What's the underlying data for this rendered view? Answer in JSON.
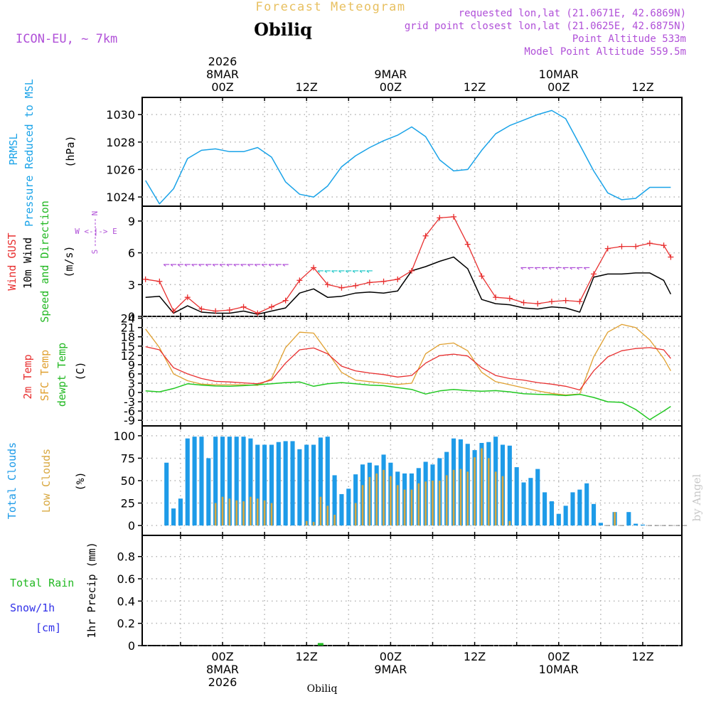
{
  "header": {
    "title": "Forecast Meteogram",
    "location": "Obiliq",
    "model": "ICON-EU, ~ 7km",
    "requested": "requested lon,lat (21.0671E, 42.6869N)",
    "gridpoint": "grid point closest lon,lat (21.0625E, 42.6875N)",
    "point_alt": "Point Altitude 533m",
    "model_alt": "Model Point Altitude 559.5m",
    "footer_location": "Obiliq",
    "watermark": "by Angel"
  },
  "time_axis": {
    "top": [
      {
        "t": 0,
        "lines": [
          "2026",
          "8MAR",
          "00Z"
        ]
      },
      {
        "t": 12,
        "lines": [
          "12Z"
        ]
      },
      {
        "t": 24,
        "lines": [
          "9MAR",
          "00Z"
        ]
      },
      {
        "t": 36,
        "lines": [
          "12Z"
        ]
      },
      {
        "t": 48,
        "lines": [
          "10MAR",
          "00Z"
        ]
      },
      {
        "t": 60,
        "lines": [
          "12Z"
        ]
      }
    ],
    "bottom": [
      {
        "t": 0,
        "lines": [
          "00Z",
          "8MAR",
          "2026"
        ]
      },
      {
        "t": 12,
        "lines": [
          "12Z"
        ]
      },
      {
        "t": 24,
        "lines": [
          "00Z",
          "9MAR"
        ]
      },
      {
        "t": 36,
        "lines": [
          "12Z"
        ]
      },
      {
        "t": 48,
        "lines": [
          "00Z",
          "10MAR"
        ]
      },
      {
        "t": 60,
        "lines": [
          "12Z"
        ]
      }
    ]
  },
  "labels": {
    "pressure": [
      "PRMSL",
      "Pressure Reduced to MSL",
      "(hPa)"
    ],
    "wind": [
      "Wind GUST",
      "10m Wind",
      "Speed and Direction",
      "(m/s)"
    ],
    "compass": [
      "N",
      "W <-|-> E",
      "S"
    ],
    "temp": [
      "2m Temp",
      "SFC Temp",
      "dewpt Temp",
      "(C)"
    ],
    "clouds": [
      "Total Clouds",
      "Low Clouds",
      "(%)"
    ],
    "precip": [
      "Total  Rain",
      "Snow/1h",
      "[cm]",
      "1hr Precip (mm)"
    ]
  },
  "colors": {
    "pressure": "#1aa3e8",
    "gust": "#e83030",
    "wind": "#000000",
    "temp2m": "#e83030",
    "sfc": "#e0a030",
    "dewpt": "#22c822",
    "total_clouds": "#1e9be8",
    "low_clouds": "#d8a840",
    "rain": "#22b822",
    "snow": "#3030e8",
    "purple": "#b050d8",
    "title": "#e8c060"
  },
  "chart_data": [
    {
      "type": "line",
      "title": "PRMSL Pressure Reduced to MSL",
      "ylabel": "(hPa)",
      "ylim": [
        1023,
        1031
      ],
      "yticks": [
        1024,
        1026,
        1028,
        1030
      ],
      "time_hours": [
        -11,
        -9,
        -7,
        -5,
        -3,
        -1,
        1,
        3,
        5,
        7,
        9,
        11,
        13,
        15,
        17,
        19,
        21,
        23,
        25,
        27,
        29,
        31,
        33,
        35,
        37,
        39,
        41,
        43,
        45,
        47,
        49,
        51,
        53,
        55,
        57,
        59,
        61,
        63,
        64
      ],
      "series": [
        {
          "name": "PRMSL",
          "values": [
            1025.2,
            1023.5,
            1024.6,
            1026.8,
            1027.4,
            1027.5,
            1027.3,
            1027.3,
            1027.6,
            1026.9,
            1025.1,
            1024.2,
            1024.0,
            1024.8,
            1026.2,
            1027.0,
            1027.6,
            1028.1,
            1028.5,
            1029.1,
            1028.4,
            1026.7,
            1025.9,
            1026.0,
            1027.4,
            1028.6,
            1029.2,
            1029.6,
            1030.0,
            1030.3,
            1029.7,
            1027.8,
            1025.9,
            1024.3,
            1023.8,
            1023.9,
            1024.7,
            1024.7,
            1024.7
          ]
        }
      ]
    },
    {
      "type": "line",
      "title": "Wind GUST / 10m Wind Speed and Direction",
      "ylabel": "(m/s)",
      "ylim": [
        0,
        10
      ],
      "yticks": [
        0,
        3,
        6,
        9
      ],
      "time_hours": [
        -11,
        -9,
        -7,
        -5,
        -3,
        -1,
        1,
        3,
        5,
        7,
        9,
        11,
        13,
        15,
        17,
        19,
        21,
        23,
        25,
        27,
        29,
        31,
        33,
        35,
        37,
        39,
        41,
        43,
        45,
        47,
        49,
        51,
        53,
        55,
        57,
        59,
        61,
        63,
        64
      ],
      "series": [
        {
          "name": "Wind GUST",
          "values": [
            3.5,
            3.3,
            0.5,
            1.8,
            0.7,
            0.5,
            0.6,
            0.9,
            0.3,
            0.9,
            1.5,
            3.4,
            4.6,
            3.0,
            2.7,
            2.9,
            3.2,
            3.3,
            3.5,
            4.3,
            7.6,
            9.3,
            9.4,
            6.8,
            3.8,
            1.8,
            1.7,
            1.3,
            1.2,
            1.4,
            1.5,
            1.4,
            4.0,
            6.4,
            6.6,
            6.6,
            6.9,
            6.7,
            5.6
          ]
        },
        {
          "name": "10m Wind",
          "values": [
            1.8,
            1.9,
            0.3,
            1.0,
            0.4,
            0.3,
            0.3,
            0.5,
            0.2,
            0.5,
            0.8,
            2.2,
            2.6,
            1.8,
            1.9,
            2.2,
            2.3,
            2.2,
            2.4,
            4.3,
            4.7,
            5.2,
            5.6,
            4.5,
            1.6,
            1.2,
            1.1,
            0.8,
            0.7,
            0.9,
            0.8,
            0.4,
            3.7,
            4.0,
            4.0,
            4.1,
            4.1,
            3.4,
            2.1
          ]
        }
      ]
    },
    {
      "type": "line",
      "title": "2m Temp / SFC Temp / dewpt Temp",
      "ylabel": "(C)",
      "ylim": [
        -10,
        24
      ],
      "yticks": [
        -9,
        -6,
        -3,
        0,
        3,
        6,
        9,
        12,
        15,
        18,
        21,
        24
      ],
      "time_hours": [
        -11,
        -9,
        -7,
        -5,
        -3,
        -1,
        1,
        3,
        5,
        7,
        9,
        11,
        13,
        15,
        17,
        19,
        21,
        23,
        25,
        27,
        29,
        31,
        33,
        35,
        37,
        39,
        41,
        43,
        45,
        47,
        49,
        51,
        53,
        55,
        57,
        59,
        61,
        63,
        64
      ],
      "series": [
        {
          "name": "2m Temp",
          "values": [
            14.8,
            13.8,
            8.0,
            6.0,
            4.5,
            3.6,
            3.4,
            3.1,
            2.8,
            4.0,
            9.5,
            13.8,
            14.4,
            12.5,
            8.5,
            7.0,
            6.3,
            5.8,
            5.0,
            5.5,
            9.5,
            11.9,
            12.4,
            11.8,
            8.0,
            5.5,
            4.5,
            4.0,
            3.2,
            2.7,
            2.0,
            0.8,
            7.0,
            11.5,
            13.5,
            14.2,
            14.5,
            13.8,
            11.0
          ]
        },
        {
          "name": "SFC Temp",
          "values": [
            20.5,
            14.5,
            6.0,
            3.8,
            2.7,
            2.5,
            2.5,
            2.5,
            2.3,
            4.5,
            14.5,
            19.5,
            19.2,
            13.0,
            6.5,
            4.0,
            3.5,
            3.0,
            2.6,
            3.0,
            12.5,
            15.5,
            16.0,
            13.5,
            6.5,
            3.5,
            2.5,
            1.5,
            0.5,
            -0.3,
            -0.8,
            -0.5,
            11.5,
            19.5,
            22.0,
            21.0,
            17.0,
            11.0,
            7.0
          ]
        },
        {
          "name": "dewpt Temp",
          "values": [
            0.5,
            0.2,
            1.3,
            2.8,
            2.4,
            2.1,
            2.0,
            2.2,
            2.5,
            2.8,
            3.2,
            3.4,
            2.0,
            2.8,
            3.2,
            2.8,
            2.4,
            2.2,
            1.6,
            1.0,
            -0.5,
            0.5,
            1.0,
            0.6,
            0.4,
            0.6,
            0.2,
            -0.4,
            -0.6,
            -0.7,
            -1.0,
            -0.6,
            -1.6,
            -3.0,
            -3.2,
            -5.5,
            -8.8,
            -6.0,
            -4.5
          ]
        }
      ]
    },
    {
      "type": "bar",
      "title": "Total Clouds / Low Clouds",
      "ylabel": "(%)",
      "ylim": [
        0,
        100
      ],
      "yticks": [
        0,
        25,
        50,
        75,
        100
      ],
      "time_hours": [
        -8,
        -7,
        -6,
        -5,
        -4,
        -3,
        -2,
        -1,
        0,
        1,
        2,
        3,
        4,
        5,
        6,
        7,
        8,
        9,
        10,
        11,
        12,
        13,
        14,
        15,
        16,
        17,
        18,
        19,
        20,
        21,
        22,
        23,
        24,
        25,
        26,
        27,
        28,
        29,
        30,
        31,
        32,
        33,
        34,
        35,
        36,
        37,
        38,
        39,
        40,
        41,
        42,
        43,
        44,
        45,
        46,
        47,
        48,
        49,
        50,
        51,
        52,
        53,
        54,
        55,
        56,
        57,
        58,
        59,
        60,
        61,
        62,
        63,
        64,
        65,
        66
      ],
      "series": [
        {
          "name": "Total Clouds",
          "values": [
            70,
            19,
            30,
            97,
            99,
            99,
            75,
            99,
            99,
            99,
            99,
            99,
            97,
            90,
            90,
            90,
            93,
            94,
            94,
            85,
            90,
            90,
            98,
            99,
            56,
            35,
            41,
            57,
            68,
            70,
            67,
            79,
            70,
            60,
            58,
            58,
            64,
            71,
            68,
            75,
            82,
            97,
            96,
            91,
            84,
            92,
            93,
            99,
            90,
            89,
            65,
            48,
            53,
            63,
            37,
            27,
            13,
            22,
            37,
            40,
            47,
            24,
            3,
            0,
            15,
            0,
            15,
            2,
            1,
            0,
            0,
            0,
            0,
            0,
            0
          ]
        },
        {
          "name": "Low Clouds",
          "values": [
            0,
            0,
            0,
            0,
            0,
            0,
            0,
            25,
            32,
            30,
            28,
            27,
            32,
            30,
            28,
            25,
            0,
            0,
            0,
            0,
            5,
            4,
            32,
            22,
            12,
            0,
            0,
            25,
            45,
            54,
            58,
            62,
            55,
            45,
            40,
            40,
            47,
            49,
            50,
            50,
            56,
            62,
            63,
            60,
            76,
            86,
            75,
            60,
            55,
            5,
            0,
            0,
            0,
            0,
            0,
            0,
            0,
            0,
            0,
            0,
            0,
            0,
            0,
            0,
            15,
            0,
            0,
            0,
            0,
            0,
            0,
            0,
            0,
            0,
            0
          ]
        }
      ]
    },
    {
      "type": "bar",
      "title": "1hr Precip",
      "ylabel": "1hr Precip (mm)",
      "ylim": [
        0,
        1
      ],
      "yticks": [
        0,
        0.2,
        0.4,
        0.6,
        0.8
      ],
      "time_hours": [
        14
      ],
      "series": [
        {
          "name": "Total Rain",
          "values": [
            0.01
          ]
        }
      ]
    }
  ]
}
